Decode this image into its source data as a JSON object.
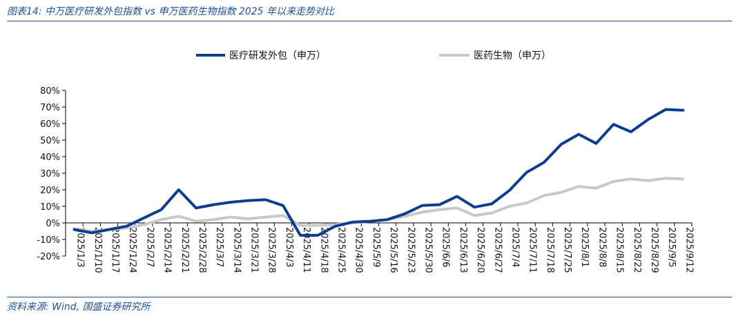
{
  "figure_title": "图表14: 中万医疗研发外包指数 vs 申万医药生物指数 2025 年以来走势对比",
  "source_note": "资料来源: Wind, 国盛证券研究所",
  "colors": {
    "series1": "#0d3d91",
    "series2": "#c8c8c8",
    "accent": "#1f4e96"
  },
  "chart_data": {
    "type": "line",
    "title": "",
    "xlabel": "",
    "ylabel": "",
    "ylim": [
      -20,
      80
    ],
    "y_ticks": [
      "80%",
      "70%",
      "60%",
      "50%",
      "40%",
      "30%",
      "20%",
      "10%",
      "0%",
      "-10%",
      "-20%"
    ],
    "y_tick_values": [
      80,
      70,
      60,
      50,
      40,
      30,
      20,
      10,
      0,
      -10,
      -20
    ],
    "legend_position": "top",
    "grid": false,
    "x": [
      "2025/1/3",
      "2025/1/10",
      "2025/1/17",
      "2025/1/24",
      "2025/2/7",
      "2025/2/14",
      "2025/2/21",
      "2025/2/28",
      "2025/3/7",
      "2025/3/14",
      "2025/3/21",
      "2025/3/28",
      "2025/4/3",
      "2025/4/11",
      "2025/4/18",
      "2025/4/25",
      "2025/4/30",
      "2025/5/9",
      "2025/5/16",
      "2025/5/23",
      "2025/5/30",
      "2025/6/6",
      "2025/6/13",
      "2025/6/20",
      "2025/6/27",
      "2025/7/4",
      "2025/7/11",
      "2025/7/18",
      "2025/7/25",
      "2025/8/1",
      "2025/8/8",
      "2025/8/15",
      "2025/8/22",
      "2025/8/29",
      "2025/9/5",
      "2025/9/12"
    ],
    "series": [
      {
        "name": "医疗研发外包（申万）",
        "values": [
          -4,
          -6,
          -4,
          -2,
          3,
          8,
          20,
          9,
          11,
          12.5,
          13.5,
          14,
          10.5,
          -7.5,
          -7.5,
          -2,
          0.5,
          1,
          2,
          5.5,
          10.5,
          11,
          16,
          9.5,
          11.5,
          19.5,
          30.5,
          36.5,
          47.5,
          53.5,
          48,
          59.5,
          55,
          62.5,
          68.5,
          68
        ]
      },
      {
        "name": "医药生物（申万）",
        "values": [
          -3.5,
          -5,
          -4,
          -3,
          -1,
          2,
          4,
          1,
          2,
          3.5,
          2.5,
          3.5,
          4.5,
          -1.5,
          -1.5,
          -1,
          0,
          1,
          2,
          4,
          6.5,
          8,
          9,
          4.5,
          6,
          10,
          12,
          16.5,
          18.5,
          22,
          21,
          25,
          26.5,
          25.5,
          27,
          26.5
        ]
      }
    ]
  }
}
